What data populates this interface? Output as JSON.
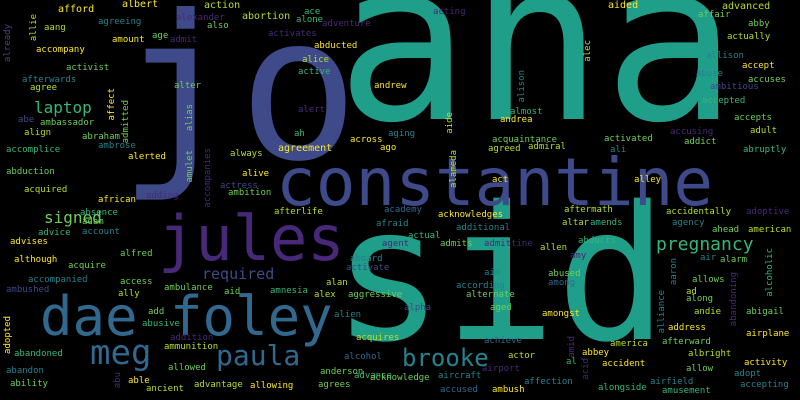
{
  "words": {
    "ana": "ana",
    "jo": "jo",
    "sid": "sid",
    "constantine": "constantine",
    "jules": "jules",
    "dae_foley": "dae foley",
    "meg": "meg",
    "paula": "paula",
    "brooke": "brooke",
    "pregnancy": "pregnancy",
    "laptop": "laptop",
    "signed": "signed",
    "required": "required",
    "albert": "albert",
    "action": "action",
    "ace": "ace",
    "acting": "acting",
    "aided": "aided",
    "advanced": "advanced",
    "afford": "afford",
    "abortion": "abortion",
    "alone": "alone",
    "affair": "affair",
    "abby": "abby",
    "alexander": "alexander",
    "also": "also",
    "agreeing": "agreeing",
    "amount": "amount",
    "age": "age",
    "admit": "admit",
    "activates": "activates",
    "actually": "actually",
    "accompany": "accompany",
    "abducted": "abducted",
    "alice": "alice",
    "allison": "allison",
    "accept": "accept",
    "active": "active",
    "abuse": "abuse",
    "accuses": "accuses",
    "ambitious": "ambitious",
    "already": "already",
    "allie": "allie",
    "aang": "aang",
    "activist": "activist",
    "afterwards": "afterwards",
    "agree": "agree",
    "affect": "affect",
    "admitted": "admitted",
    "abraham": "abraham",
    "ambrose": "ambrose",
    "ambassador": "ambassador",
    "abe": "abe",
    "align": "align",
    "accomplice": "accomplice",
    "abduction": "abduction",
    "acquired": "acquired",
    "alter": "alter",
    "alias": "alias",
    "alert": "alert",
    "ah": "ah",
    "agreement": "agreement",
    "always": "always",
    "amulet": "amulet",
    "accompanies": "accompanies",
    "alerted": "alerted",
    "andrew": "andrew",
    "alison": "alison",
    "almost": "almost",
    "andrea": "andrea",
    "aide": "aide",
    "alec": "alec",
    "accepted": "accepted",
    "accepts": "accepts",
    "adult": "adult",
    "abruptly": "abruptly",
    "accusing": "accusing",
    "activated": "activated",
    "addict": "addict",
    "across": "across",
    "ago": "ago",
    "aging": "aging",
    "acquaintance": "acquaintance",
    "agreed": "agreed",
    "admiral": "admiral",
    "ali": "ali",
    "alameda": "alameda",
    "act": "act",
    "alley": "alley",
    "adding": "adding",
    "actress": "actress",
    "ambition": "ambition",
    "alive": "alive",
    "african": "african",
    "absence": "absence",
    "adam": "adam",
    "advice": "advice",
    "account": "account",
    "advises": "advises",
    "although": "although",
    "acquire": "acquire",
    "alfred": "alfred",
    "access": "access",
    "ally": "ally",
    "ambulance": "ambulance",
    "accompanied": "accompanied",
    "ambushed": "ambushed",
    "afterlife": "afterlife",
    "academy": "academy",
    "aftermath": "aftermath",
    "acknowledges": "acknowledges",
    "agency": "agency",
    "accidentally": "accidentally",
    "adoptive": "adoptive",
    "afraid": "afraid",
    "ahead": "ahead",
    "american": "american",
    "additional": "additional",
    "altar": "altar",
    "amends": "amends",
    "actual": "actual",
    "agent": "agent",
    "admits": "admits",
    "admittine": "admittine",
    "abducts": "abducts",
    "amy": "amy",
    "allen": "allen",
    "alarm": "alarm",
    "air": "air",
    "aaron": "aaron",
    "alcoholic": "alcoholic",
    "abandoning": "abandoning",
    "activate": "activate",
    "aboard": "aboard",
    "amnesia": "amnesia",
    "aid": "aid",
    "alan": "alan",
    "alex": "alex",
    "aggressive": "aggressive",
    "aim": "aim",
    "according": "according",
    "alternate": "alternate",
    "abused": "abused",
    "among": "among",
    "ad": "ad",
    "allows": "allows",
    "along": "along",
    "andie": "andie",
    "abigail": "abigail",
    "alliance": "alliance",
    "add": "add",
    "abusive": "abusive",
    "alien": "alien",
    "alpha": "alpha",
    "aged": "aged",
    "amongst": "amongst",
    "address": "address",
    "airplane": "airplane",
    "addition": "addition",
    "ammunition": "ammunition",
    "acquires": "acquires",
    "achieve": "achieve",
    "america": "america",
    "afterward": "afterward",
    "albright": "albright",
    "adopted": "adopted",
    "abandoned": "abandoned",
    "alcohol": "alcohol",
    "advance": "advance",
    "actor": "actor",
    "abbey": "abbey",
    "activity": "activity",
    "abandon": "abandon",
    "allowed": "allowed",
    "anderson": "anderson",
    "acknowledge": "acknowledge",
    "airport": "airport",
    "accident": "accident",
    "allow": "allow",
    "adopt": "adopt",
    "ability": "ability",
    "abu": "abu",
    "able": "able",
    "ancient": "ancient",
    "advantage": "advantage",
    "allowing": "allowing",
    "agrees": "agrees",
    "aircraft": "aircraft",
    "affection": "affection",
    "airfield": "airfield",
    "accepting": "accepting",
    "accused": "accused",
    "ambush": "ambush",
    "alongside": "alongside",
    "amusement": "amusement",
    "al": "al",
    "amid": "amid",
    "acid": "acid",
    "adventure": "adventure"
  },
  "colors": {
    "teal": "#1f9e89",
    "blue": "#3e4a89",
    "violet": "#482878",
    "mid_blue": "#31688e",
    "cyan": "#26828e",
    "green": "#35b779",
    "yellow": "#fde725",
    "lime": "#b5de2b",
    "light_green": "#6ece58",
    "purple": "#440154"
  }
}
